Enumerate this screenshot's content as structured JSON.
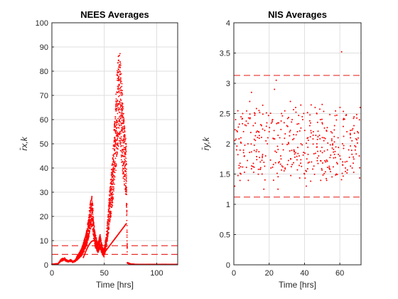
{
  "chart_data": [
    {
      "type": "scatter",
      "title": "NEES Averages",
      "xlabel": "Time [hrs]",
      "ylabel": "r̄x,k",
      "xlim": [
        0,
        120
      ],
      "ylim": [
        0,
        100
      ],
      "xticks": [
        "0",
        "50",
        "100"
      ],
      "yticks": [
        "0",
        "10",
        "20",
        "30",
        "40",
        "50",
        "60",
        "70",
        "80",
        "90",
        "100"
      ],
      "grid": true,
      "color": "#ff0000",
      "bounds": [
        4.3,
        7.9
      ],
      "series": [
        {
          "description_points": "dense point cloud",
          "x": [
            0,
            3,
            6,
            9,
            12,
            15,
            18,
            20,
            22,
            24,
            26,
            28,
            30,
            32,
            33,
            34,
            35,
            36,
            37,
            38,
            39,
            40,
            41,
            42,
            43,
            44,
            45,
            46,
            47,
            48,
            49,
            50,
            51,
            52,
            53,
            54,
            55,
            56,
            57,
            58,
            59,
            60,
            61,
            62,
            63,
            64,
            65,
            66,
            67,
            68,
            69,
            70,
            71,
            72,
            75,
            80,
            90,
            100,
            110,
            120
          ],
          "y": [
            0.3,
            0.4,
            0.6,
            2.5,
            3.0,
            1.8,
            2.2,
            1.5,
            2.0,
            3.5,
            5.0,
            6.5,
            9.0,
            12.0,
            14.0,
            17.0,
            20.0,
            24.0,
            27.0,
            29.0,
            25.0,
            18.0,
            14.0,
            12.0,
            10.0,
            9.0,
            11.0,
            13.0,
            10.0,
            8.0,
            6.5,
            7.0,
            9.5,
            13.0,
            18.0,
            24.0,
            30.0,
            35.0,
            40.0,
            45.0,
            55.0,
            62.0,
            70.0,
            78.0,
            85.0,
            93.0,
            88.0,
            80.0,
            74.0,
            65.0,
            60.0,
            55.0,
            50.0,
            1.0,
            0.4,
            0.2,
            0.2,
            0.2,
            0.2,
            0.2
          ]
        }
      ]
    },
    {
      "type": "scatter",
      "title": "NIS Averages",
      "xlabel": "Time [hrs]",
      "ylabel": "r̄y,k",
      "xlim": [
        0,
        72
      ],
      "ylim": [
        0,
        4
      ],
      "xticks": [
        "0",
        "20",
        "40",
        "60"
      ],
      "yticks": [
        "0",
        "0.5",
        "1",
        "1.5",
        "2",
        "2.5",
        "3",
        "3.5",
        "4"
      ],
      "grid": true,
      "color": "#ff0000",
      "bounds": [
        1.12,
        3.13
      ],
      "series": [
        {
          "x": [
            0.5,
            1.0,
            1.5,
            2.0,
            3.0,
            4.0,
            5.0,
            6.0,
            7.0,
            8.0,
            9.0,
            10.0,
            11.0,
            12.0,
            13.0,
            14.0,
            15.0,
            16.0,
            17.0,
            18.0,
            19.0,
            20.0,
            21.0,
            22.0,
            23.0,
            24.0,
            25.0,
            26.0,
            27.0,
            28.0,
            29.0,
            30.0,
            31.0,
            32.0,
            33.0,
            34.0,
            35.0,
            36.0,
            37.0,
            38.0,
            39.0,
            40.0,
            41.0,
            42.0,
            43.0,
            44.0,
            45.0,
            46.0,
            47.0,
            48.0,
            49.0,
            50.0,
            51.0,
            52.0,
            53.0,
            54.0,
            55.0,
            56.0,
            57.0,
            58.0,
            59.0,
            60.0,
            61.0,
            61.5,
            62.0,
            63.0,
            64.0,
            65.0,
            66.0,
            67.0,
            68.0,
            69.0,
            70.0,
            71.0,
            71.5
          ],
          "y": [
            1.3,
            2.4,
            1.9,
            2.2,
            1.6,
            2.1,
            2.5,
            1.8,
            2.3,
            2.0,
            2.7,
            2.85,
            2.3,
            2.5,
            1.9,
            2.2,
            1.7,
            1.5,
            1.25,
            1.8,
            2.0,
            2.2,
            1.6,
            2.4,
            2.9,
            3.05,
            1.25,
            2.1,
            2.5,
            1.9,
            1.6,
            2.3,
            2.0,
            2.7,
            2.4,
            1.9,
            2.6,
            2.2,
            1.8,
            2.0,
            2.4,
            1.5,
            1.3,
            2.1,
            2.3,
            1.7,
            2.2,
            2.6,
            2.0,
            1.8,
            2.4,
            2.65,
            2.1,
            1.7,
            1.9,
            1.6,
            2.2,
            2.0,
            2.3,
            1.5,
            2.1,
            1.8,
            3.52,
            2.0,
            2.4,
            1.7,
            2.2,
            1.9,
            2.1,
            1.6,
            2.3,
            1.95,
            2.2,
            1.8,
            2.6
          ]
        }
      ]
    }
  ]
}
